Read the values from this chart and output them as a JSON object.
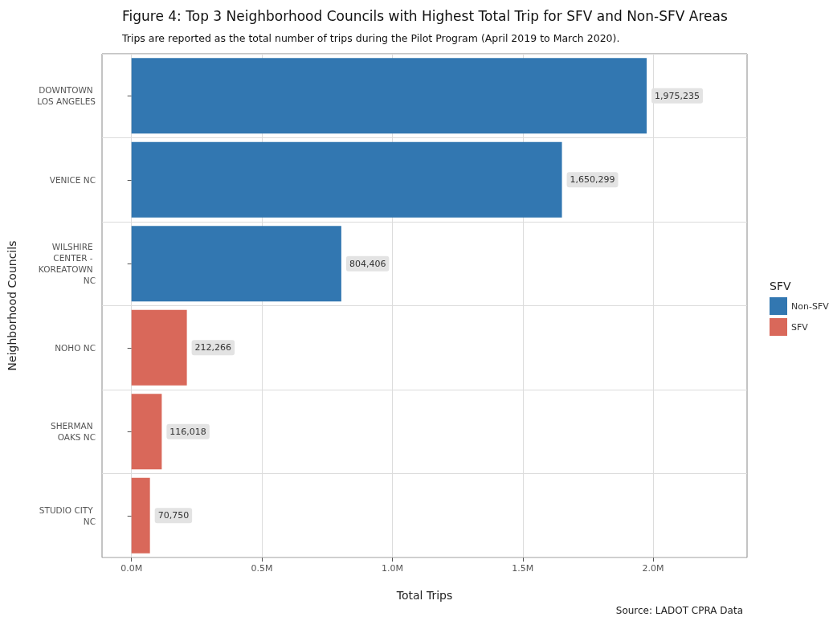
{
  "chart_data": {
    "type": "bar",
    "orientation": "horizontal",
    "title": "Figure 4: Top 3 Neighborhood Councils with Highest Total Trip for SFV and Non-SFV Areas",
    "subtitle": "Trips are reported as the total number of trips during the Pilot Program (April 2019 to March 2020).",
    "xlabel": "Total Trips",
    "ylabel": "Neighborhood Councils",
    "legend_title": "SFV",
    "legend": "right",
    "grid": true,
    "categories": [
      "DOWNTOWN LOS ANGELES",
      "VENICE NC",
      "WILSHIRE CENTER - KOREATOWN NC",
      "NOHO NC",
      "SHERMAN OAKS NC",
      "STUDIO CITY NC"
    ],
    "series": [
      {
        "name": "Non-SFV",
        "color": "#3277b1",
        "values": [
          1975235,
          1650299,
          804406,
          null,
          null,
          null
        ],
        "value_labels": [
          "1,975,235",
          "1,650,299",
          "804,406",
          null,
          null,
          null
        ]
      },
      {
        "name": "SFV",
        "color": "#d9685a",
        "values": [
          null,
          null,
          null,
          212266,
          116018,
          70750
        ],
        "value_labels": [
          null,
          null,
          null,
          "212,266",
          "116,018",
          "70,750"
        ]
      }
    ],
    "xlim": [
      -113000,
      2360000
    ],
    "xticks": [
      {
        "value": 0,
        "label": "0.0M"
      },
      {
        "value": 500000,
        "label": "0.5M"
      },
      {
        "value": 1000000,
        "label": "1.0M"
      },
      {
        "value": 1500000,
        "label": "1.5M"
      },
      {
        "value": 2000000,
        "label": "2.0M"
      }
    ],
    "annotations": [
      "Source: LADOT CPRA Data"
    ]
  }
}
